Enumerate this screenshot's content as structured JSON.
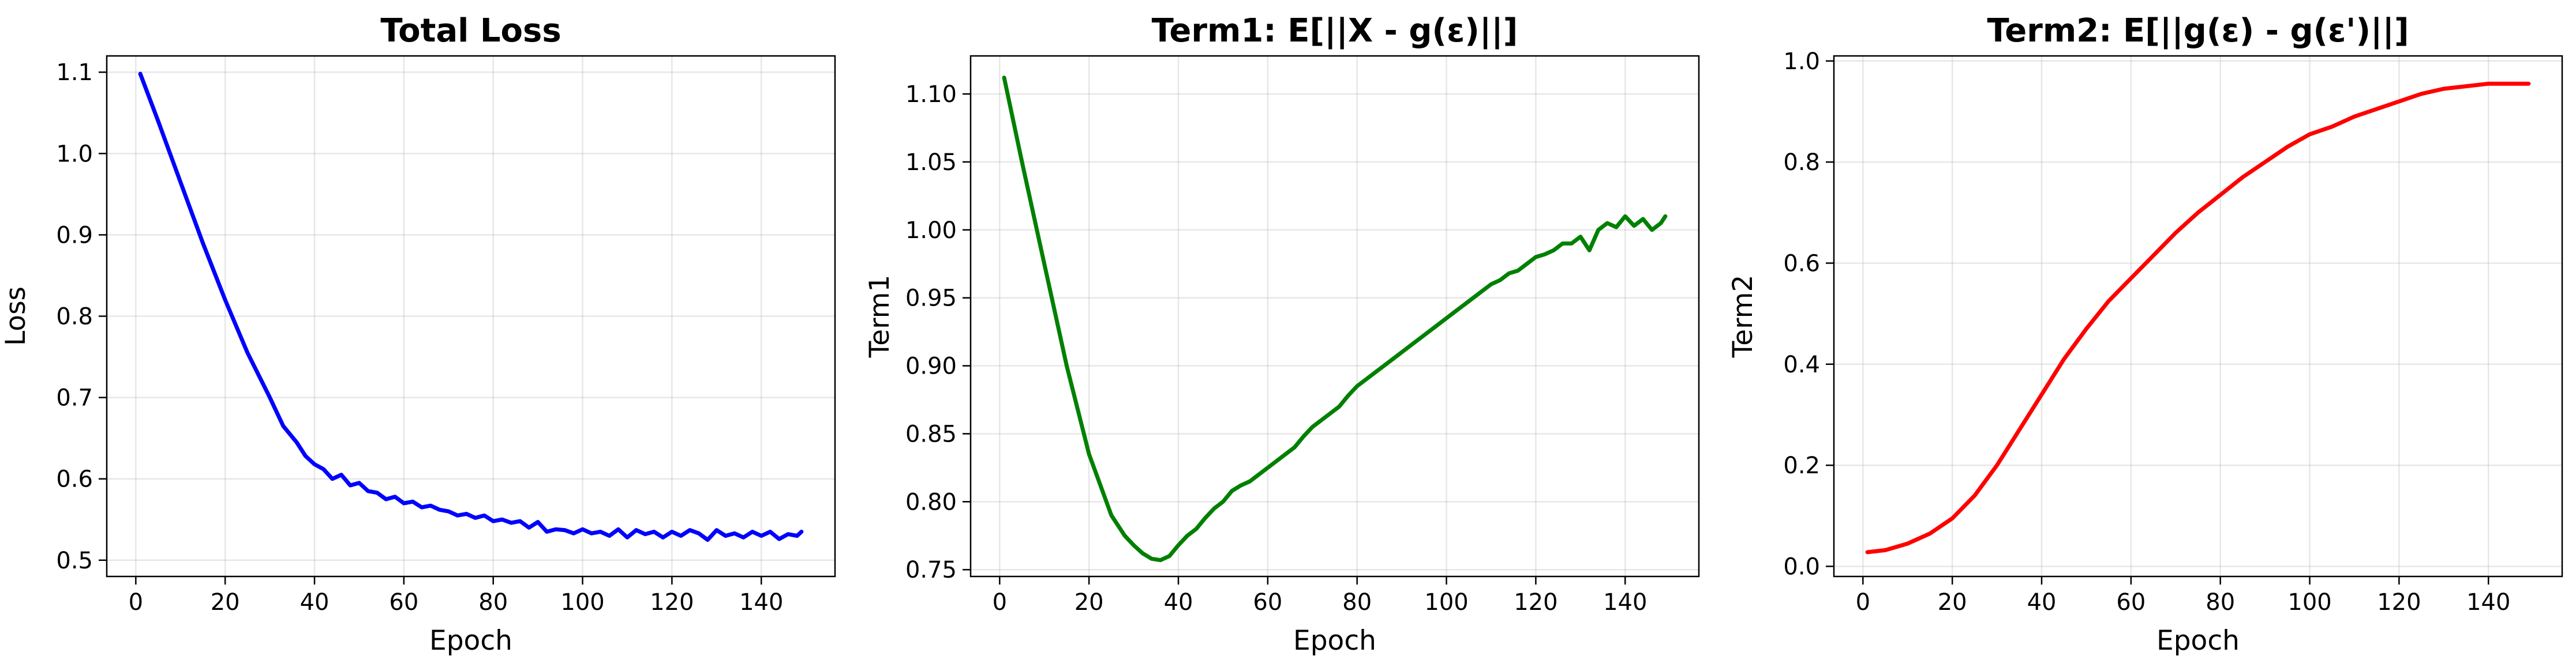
{
  "chart_data": [
    {
      "type": "line",
      "title": "Total Loss",
      "xlabel": "Epoch",
      "ylabel": "Loss",
      "xlim": [
        -6.5,
        156.5
      ],
      "ylim": [
        0.48,
        1.12
      ],
      "xticks": [
        0,
        20,
        40,
        60,
        80,
        100,
        120,
        140
      ],
      "yticks": [
        0.5,
        0.6,
        0.7,
        0.8,
        0.9,
        1.0,
        1.1
      ],
      "ytick_labels": [
        "0.5",
        "0.6",
        "0.7",
        "0.8",
        "0.9",
        "1.0",
        "1.1"
      ],
      "grid": true,
      "color": "#0000ff",
      "series": [
        {
          "x": [
            1,
            5,
            10,
            15,
            20,
            25,
            30,
            33,
            36,
            38,
            40,
            42,
            44,
            46,
            48,
            50,
            52,
            54,
            56,
            58,
            60,
            62,
            64,
            66,
            68,
            70,
            72,
            74,
            76,
            78,
            80,
            82,
            84,
            86,
            88,
            90,
            92,
            94,
            96,
            98,
            100,
            102,
            104,
            106,
            108,
            110,
            112,
            114,
            116,
            118,
            120,
            122,
            124,
            126,
            128,
            130,
            132,
            134,
            136,
            138,
            140,
            142,
            144,
            146,
            148,
            149
          ],
          "y": [
            1.098,
            1.04,
            0.965,
            0.89,
            0.82,
            0.755,
            0.7,
            0.665,
            0.645,
            0.628,
            0.618,
            0.612,
            0.6,
            0.605,
            0.592,
            0.595,
            0.585,
            0.583,
            0.575,
            0.578,
            0.57,
            0.572,
            0.565,
            0.567,
            0.562,
            0.56,
            0.555,
            0.557,
            0.552,
            0.555,
            0.548,
            0.55,
            0.546,
            0.548,
            0.54,
            0.547,
            0.535,
            0.538,
            0.537,
            0.533,
            0.538,
            0.533,
            0.535,
            0.53,
            0.538,
            0.528,
            0.537,
            0.532,
            0.535,
            0.528,
            0.535,
            0.53,
            0.537,
            0.533,
            0.525,
            0.537,
            0.53,
            0.533,
            0.528,
            0.535,
            0.53,
            0.535,
            0.526,
            0.532,
            0.53,
            0.535
          ]
        }
      ]
    },
    {
      "type": "line",
      "title": "Term1: E[||X - g(ε)||]",
      "xlabel": "Epoch",
      "ylabel": "Term1",
      "xlim": [
        -6.5,
        156.5
      ],
      "ylim": [
        0.745,
        1.128
      ],
      "xticks": [
        0,
        20,
        40,
        60,
        80,
        100,
        120,
        140
      ],
      "yticks": [
        0.75,
        0.8,
        0.85,
        0.9,
        0.95,
        1.0,
        1.05,
        1.1
      ],
      "ytick_labels": [
        "0.75",
        "0.80",
        "0.85",
        "0.90",
        "0.95",
        "1.00",
        "1.05",
        "1.10"
      ],
      "grid": true,
      "color": "#008000",
      "series": [
        {
          "x": [
            1,
            5,
            10,
            15,
            20,
            25,
            28,
            30,
            32,
            34,
            36,
            38,
            40,
            42,
            44,
            46,
            48,
            50,
            52,
            54,
            56,
            58,
            60,
            62,
            64,
            66,
            68,
            70,
            72,
            74,
            76,
            78,
            80,
            82,
            84,
            86,
            88,
            90,
            92,
            94,
            96,
            98,
            100,
            102,
            104,
            106,
            108,
            110,
            112,
            114,
            116,
            118,
            120,
            122,
            124,
            126,
            128,
            130,
            132,
            134,
            136,
            138,
            140,
            142,
            144,
            146,
            148,
            149
          ],
          "y": [
            1.112,
            1.05,
            0.975,
            0.9,
            0.835,
            0.79,
            0.775,
            0.768,
            0.762,
            0.758,
            0.757,
            0.76,
            0.768,
            0.775,
            0.78,
            0.788,
            0.795,
            0.8,
            0.808,
            0.812,
            0.815,
            0.82,
            0.825,
            0.83,
            0.835,
            0.84,
            0.848,
            0.855,
            0.86,
            0.865,
            0.87,
            0.878,
            0.885,
            0.89,
            0.895,
            0.9,
            0.905,
            0.91,
            0.915,
            0.92,
            0.925,
            0.93,
            0.935,
            0.94,
            0.945,
            0.95,
            0.955,
            0.96,
            0.963,
            0.968,
            0.97,
            0.975,
            0.98,
            0.982,
            0.985,
            0.99,
            0.99,
            0.995,
            0.985,
            1.0,
            1.005,
            1.002,
            1.01,
            1.003,
            1.008,
            1.0,
            1.005,
            1.01
          ]
        }
      ]
    },
    {
      "type": "line",
      "title": "Term2: E[||g(ε) - g(ε')||]",
      "xlabel": "Epoch",
      "ylabel": "Term2",
      "xlim": [
        -6.5,
        156.5
      ],
      "ylim": [
        -0.02,
        1.01
      ],
      "xticks": [
        0,
        20,
        40,
        60,
        80,
        100,
        120,
        140
      ],
      "yticks": [
        0.0,
        0.2,
        0.4,
        0.6,
        0.8,
        1.0
      ],
      "ytick_labels": [
        "0.0",
        "0.2",
        "0.4",
        "0.6",
        "0.8",
        "1.0"
      ],
      "grid": true,
      "color": "#ff0000",
      "series": [
        {
          "x": [
            1,
            5,
            10,
            15,
            20,
            25,
            30,
            35,
            40,
            45,
            50,
            55,
            60,
            65,
            70,
            75,
            80,
            85,
            90,
            95,
            100,
            105,
            110,
            115,
            120,
            125,
            130,
            135,
            140,
            145,
            149
          ],
          "y": [
            0.028,
            0.032,
            0.045,
            0.065,
            0.095,
            0.14,
            0.2,
            0.27,
            0.34,
            0.41,
            0.47,
            0.525,
            0.57,
            0.615,
            0.66,
            0.7,
            0.735,
            0.77,
            0.8,
            0.83,
            0.855,
            0.87,
            0.89,
            0.905,
            0.92,
            0.935,
            0.945,
            0.95,
            0.955,
            0.955,
            0.955
          ]
        }
      ]
    }
  ]
}
